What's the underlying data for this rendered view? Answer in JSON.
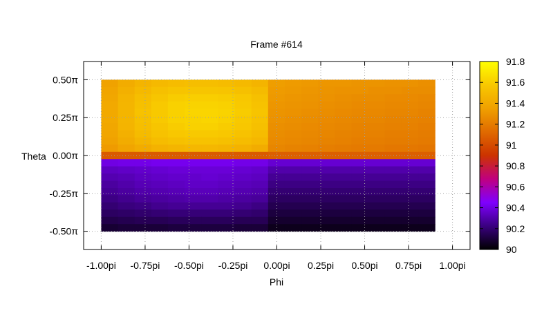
{
  "chart_data": {
    "type": "heatmap",
    "title": "Frame #614",
    "xlabel": "Phi",
    "ylabel": "Theta",
    "xlim": [
      -1.1,
      1.1
    ],
    "ylim": [
      -0.62,
      0.62
    ],
    "x_ticks": [
      {
        "value": -1.0,
        "label": "-1.00pi"
      },
      {
        "value": -0.75,
        "label": "-0.75pi"
      },
      {
        "value": -0.5,
        "label": "-0.50pi"
      },
      {
        "value": -0.25,
        "label": "-0.25pi"
      },
      {
        "value": 0.0,
        "label": "0.00pi"
      },
      {
        "value": 0.25,
        "label": "0.25pi"
      },
      {
        "value": 0.5,
        "label": "0.50pi"
      },
      {
        "value": 0.75,
        "label": "0.75pi"
      },
      {
        "value": 1.0,
        "label": "1.00pi"
      }
    ],
    "y_ticks": [
      {
        "value": 0.5,
        "label": "0.50π"
      },
      {
        "value": 0.25,
        "label": "0.25π"
      },
      {
        "value": 0.0,
        "label": "0.00π"
      },
      {
        "value": -0.25,
        "label": "-0.25π"
      },
      {
        "value": -0.5,
        "label": "-0.50π"
      }
    ],
    "grid": true,
    "colorbar": {
      "range": [
        90,
        91.8
      ],
      "ticks": [
        {
          "value": 91.8,
          "label": "91.8"
        },
        {
          "value": 91.6,
          "label": "91.6"
        },
        {
          "value": 91.4,
          "label": "91.4"
        },
        {
          "value": 91.2,
          "label": "91.2"
        },
        {
          "value": 91.0,
          "label": "91"
        },
        {
          "value": 90.8,
          "label": "90.8"
        },
        {
          "value": 90.6,
          "label": "90.6"
        },
        {
          "value": 90.4,
          "label": "90.4"
        },
        {
          "value": 90.2,
          "label": "90.2"
        },
        {
          "value": 90.0,
          "label": "90"
        }
      ],
      "colors": [
        "#000000",
        "#3a0080",
        "#7f00ff",
        "#c0007f",
        "#cc3300",
        "#e06a00",
        "#f0a000",
        "#f8c800",
        "#ffff00"
      ]
    },
    "data_extent": {
      "phi": [
        -1.0,
        0.9
      ],
      "theta": [
        -0.5,
        0.5
      ]
    },
    "columns_phi": [
      -1.0,
      -0.9,
      -0.8,
      -0.7,
      -0.6,
      -0.5,
      -0.4,
      -0.3,
      -0.2,
      -0.1,
      0.0,
      0.1,
      0.2,
      0.3,
      0.4,
      0.5,
      0.6,
      0.7,
      0.8,
      0.9
    ],
    "rows_theta": [
      0.5,
      0.45,
      0.4,
      0.35,
      0.3,
      0.25,
      0.2,
      0.15,
      0.1,
      0.05,
      0.0,
      -0.05,
      -0.1,
      -0.15,
      -0.2,
      -0.25,
      -0.3,
      -0.35,
      -0.4,
      -0.45,
      -0.5
    ],
    "values": [
      [
        91.36,
        91.42,
        91.46,
        91.49,
        91.51,
        91.52,
        91.52,
        91.51,
        91.49,
        91.46,
        91.34,
        91.33,
        91.32,
        91.31,
        91.31,
        91.3,
        91.3,
        91.29,
        91.29,
        91.28
      ],
      [
        91.38,
        91.44,
        91.49,
        91.53,
        91.55,
        91.56,
        91.56,
        91.55,
        91.53,
        91.5,
        91.33,
        91.32,
        91.31,
        91.3,
        91.29,
        91.29,
        91.28,
        91.28,
        91.27,
        91.27
      ],
      [
        91.39,
        91.46,
        91.52,
        91.56,
        91.59,
        91.6,
        91.6,
        91.59,
        91.57,
        91.53,
        91.32,
        91.31,
        91.3,
        91.29,
        91.28,
        91.27,
        91.27,
        91.26,
        91.26,
        91.25
      ],
      [
        91.4,
        91.47,
        91.53,
        91.58,
        91.61,
        91.62,
        91.62,
        91.61,
        91.58,
        91.54,
        91.31,
        91.3,
        91.29,
        91.28,
        91.27,
        91.26,
        91.26,
        91.25,
        91.25,
        91.24
      ],
      [
        91.4,
        91.47,
        91.54,
        91.58,
        91.61,
        91.63,
        91.63,
        91.62,
        91.59,
        91.55,
        91.3,
        91.29,
        91.28,
        91.27,
        91.26,
        91.25,
        91.25,
        91.24,
        91.24,
        91.23
      ],
      [
        91.4,
        91.47,
        91.53,
        91.58,
        91.61,
        91.62,
        91.63,
        91.61,
        91.58,
        91.54,
        91.29,
        91.28,
        91.27,
        91.26,
        91.25,
        91.24,
        91.24,
        91.23,
        91.23,
        91.22
      ],
      [
        91.39,
        91.46,
        91.52,
        91.56,
        91.59,
        91.61,
        91.61,
        91.59,
        91.57,
        91.53,
        91.28,
        91.27,
        91.26,
        91.25,
        91.24,
        91.23,
        91.23,
        91.22,
        91.22,
        91.21
      ],
      [
        91.38,
        91.44,
        91.5,
        91.54,
        91.57,
        91.58,
        91.58,
        91.57,
        91.54,
        91.51,
        91.27,
        91.26,
        91.25,
        91.24,
        91.23,
        91.22,
        91.22,
        91.21,
        91.21,
        91.2
      ],
      [
        91.36,
        91.42,
        91.47,
        91.51,
        91.53,
        91.54,
        91.54,
        91.53,
        91.51,
        91.48,
        91.26,
        91.25,
        91.24,
        91.23,
        91.22,
        91.21,
        91.21,
        91.2,
        91.2,
        91.19
      ],
      [
        91.33,
        91.38,
        91.42,
        91.45,
        91.47,
        91.48,
        91.48,
        91.47,
        91.45,
        91.42,
        91.24,
        91.23,
        91.22,
        91.21,
        91.2,
        91.19,
        91.19,
        91.18,
        91.18,
        91.17
      ],
      [
        91.06,
        91.06,
        91.06,
        91.06,
        91.06,
        91.06,
        91.06,
        91.06,
        91.06,
        91.06,
        91.08,
        91.08,
        91.08,
        91.08,
        91.08,
        91.08,
        91.08,
        91.08,
        91.08,
        91.08
      ],
      [
        90.4,
        90.41,
        90.41,
        90.42,
        90.42,
        90.42,
        90.42,
        90.42,
        90.41,
        90.41,
        90.37,
        90.37,
        90.37,
        90.37,
        90.37,
        90.37,
        90.37,
        90.37,
        90.37,
        90.37
      ],
      [
        90.34,
        90.35,
        90.36,
        90.37,
        90.38,
        90.38,
        90.38,
        90.38,
        90.37,
        90.36,
        90.3,
        90.3,
        90.3,
        90.3,
        90.3,
        90.3,
        90.3,
        90.3,
        90.3,
        90.3
      ],
      [
        90.31,
        90.32,
        90.34,
        90.35,
        90.36,
        90.36,
        90.37,
        90.36,
        90.35,
        90.34,
        90.26,
        90.26,
        90.26,
        90.26,
        90.26,
        90.26,
        90.26,
        90.26,
        90.26,
        90.26
      ],
      [
        90.28,
        90.3,
        90.32,
        90.33,
        90.34,
        90.35,
        90.35,
        90.34,
        90.33,
        90.32,
        90.23,
        90.23,
        90.23,
        90.23,
        90.23,
        90.23,
        90.23,
        90.23,
        90.23,
        90.23
      ],
      [
        90.26,
        90.28,
        90.3,
        90.31,
        90.32,
        90.33,
        90.33,
        90.32,
        90.31,
        90.3,
        90.2,
        90.2,
        90.2,
        90.2,
        90.2,
        90.2,
        90.2,
        90.2,
        90.2,
        90.2
      ],
      [
        90.23,
        90.25,
        90.27,
        90.28,
        90.29,
        90.3,
        90.3,
        90.29,
        90.28,
        90.27,
        90.17,
        90.17,
        90.17,
        90.17,
        90.17,
        90.17,
        90.17,
        90.17,
        90.17,
        90.17
      ],
      [
        90.2,
        90.22,
        90.23,
        90.25,
        90.26,
        90.26,
        90.26,
        90.26,
        90.25,
        90.23,
        90.14,
        90.14,
        90.14,
        90.14,
        90.14,
        90.14,
        90.14,
        90.14,
        90.14,
        90.14
      ],
      [
        90.17,
        90.18,
        90.19,
        90.2,
        90.21,
        90.21,
        90.21,
        90.21,
        90.2,
        90.19,
        90.11,
        90.11,
        90.11,
        90.11,
        90.11,
        90.11,
        90.11,
        90.11,
        90.11,
        90.11
      ],
      [
        90.13,
        90.14,
        90.15,
        90.15,
        90.16,
        90.16,
        90.16,
        90.16,
        90.15,
        90.15,
        90.08,
        90.08,
        90.08,
        90.08,
        90.08,
        90.08,
        90.08,
        90.08,
        90.08,
        90.08
      ],
      [
        90.09,
        90.1,
        90.1,
        90.1,
        90.11,
        90.11,
        90.11,
        90.11,
        90.1,
        90.1,
        90.05,
        90.05,
        90.05,
        90.05,
        90.05,
        90.05,
        90.05,
        90.05,
        90.05,
        90.05
      ]
    ]
  }
}
